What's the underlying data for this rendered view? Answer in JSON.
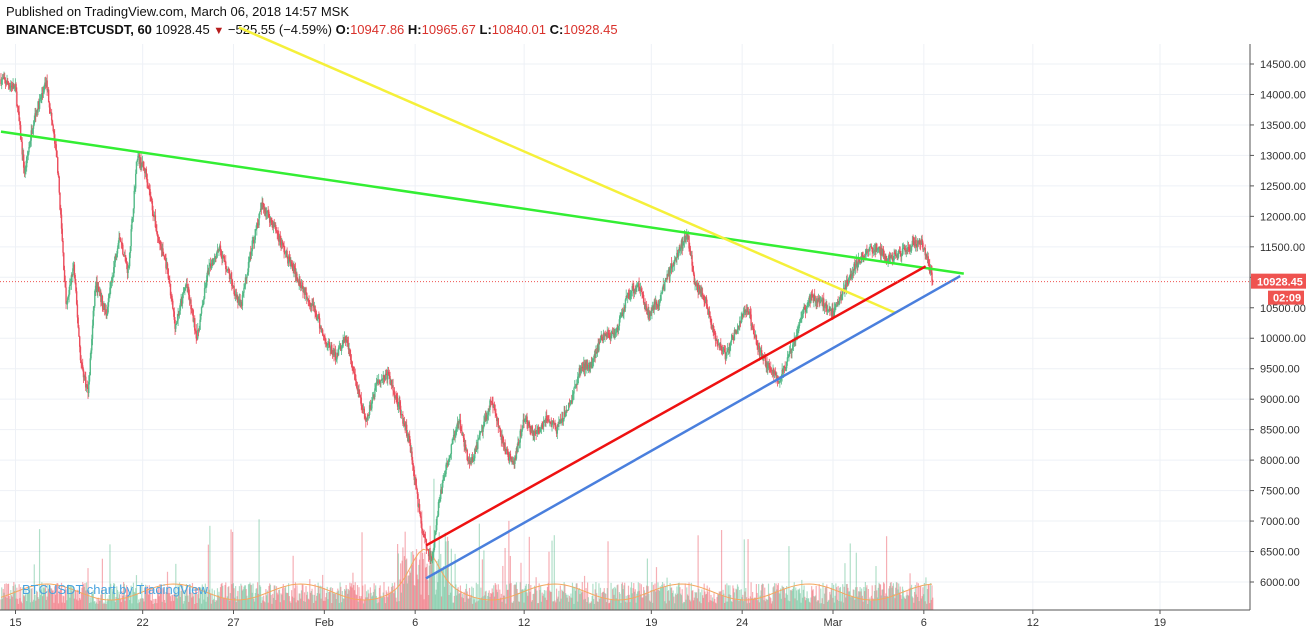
{
  "header": {
    "published": "Published on TradingView.com, March 06, 2018 14:57 MSK",
    "symbol": "BINANCE:BTCUSDT, 60",
    "last": "10928.45",
    "change": "−525.55 (−4.59%)",
    "o_label": "O:",
    "o_value": "10947.86",
    "h_label": "H:",
    "h_value": "10965.67",
    "l_label": "L:",
    "l_value": "10840.01",
    "c_label": "C:",
    "c_value": "10928.45"
  },
  "watermark": "BTCUSDT chart by TradingView",
  "price_label": "10928.45",
  "countdown": "02:09",
  "colors": {
    "up": "#53b987",
    "down": "#eb4d5c",
    "grid": "#eef1f6",
    "green_line": "#33ee33",
    "yellow_line": "#f5f03a",
    "red_line": "#ee1111",
    "blue_line": "#4a7fdd",
    "price_tag": "#ef5350"
  },
  "chart_data": {
    "type": "candlestick",
    "y_ticks": [
      "14500.00",
      "14000.00",
      "13500.00",
      "13000.00",
      "12500.00",
      "12000.00",
      "11500.00",
      "11000.00",
      "10500.00",
      "10000.00",
      "9500.00",
      "9000.00",
      "8500.00",
      "8000.00",
      "7500.00",
      "7000.00",
      "6500.00",
      "6000.00"
    ],
    "y_tick_values": [
      14500,
      14000,
      13500,
      13000,
      12500,
      12000,
      11500,
      11000,
      10500,
      10000,
      9500,
      9000,
      8500,
      8000,
      7500,
      7000,
      6500,
      6000
    ],
    "ylim": [
      5570,
      14850
    ],
    "x_ticks": [
      {
        "label": "15",
        "day": 0
      },
      {
        "label": "22",
        "day": 7
      },
      {
        "label": "27",
        "day": 12
      },
      {
        "label": "Feb",
        "day": 17
      },
      {
        "label": "6",
        "day": 22
      },
      {
        "label": "12",
        "day": 28
      },
      {
        "label": "19",
        "day": 35
      },
      {
        "label": "24",
        "day": 40
      },
      {
        "label": "Mar",
        "day": 45
      },
      {
        "label": "6",
        "day": 50
      },
      {
        "label": "12",
        "day": 56
      },
      {
        "label": "19",
        "day": 63
      }
    ],
    "xlim": [
      -0.8,
      66
    ],
    "last_day": 50.5,
    "price_path": [
      [
        -0.8,
        14250
      ],
      [
        0,
        14100
      ],
      [
        0.5,
        12700
      ],
      [
        1,
        13600
      ],
      [
        1.7,
        14200
      ],
      [
        2.3,
        12900
      ],
      [
        2.8,
        10500
      ],
      [
        3.2,
        11200
      ],
      [
        3.6,
        9600
      ],
      [
        4.0,
        9100
      ],
      [
        4.4,
        10900
      ],
      [
        5,
        10400
      ],
      [
        5.7,
        11700
      ],
      [
        6.2,
        11100
      ],
      [
        6.7,
        13000
      ],
      [
        7.2,
        12700
      ],
      [
        7.8,
        11700
      ],
      [
        8.3,
        11200
      ],
      [
        8.8,
        10200
      ],
      [
        9.4,
        10900
      ],
      [
        10,
        10000
      ],
      [
        10.6,
        11100
      ],
      [
        11.2,
        11500
      ],
      [
        11.8,
        11000
      ],
      [
        12.4,
        10500
      ],
      [
        13,
        11500
      ],
      [
        13.6,
        12200
      ],
      [
        14.3,
        11800
      ],
      [
        15,
        11300
      ],
      [
        15.7,
        10900
      ],
      [
        16.4,
        10500
      ],
      [
        17,
        10000
      ],
      [
        17.6,
        9700
      ],
      [
        18.2,
        10000
      ],
      [
        18.7,
        9300
      ],
      [
        19.3,
        8600
      ],
      [
        19.9,
        9300
      ],
      [
        20.5,
        9400
      ],
      [
        21.1,
        8900
      ],
      [
        21.7,
        8300
      ],
      [
        22.1,
        7400
      ],
      [
        22.5,
        6700
      ],
      [
        22.9,
        6300
      ],
      [
        23.3,
        7300
      ],
      [
        23.8,
        8000
      ],
      [
        24.4,
        8700
      ],
      [
        25,
        7900
      ],
      [
        25.6,
        8400
      ],
      [
        26.2,
        9000
      ],
      [
        26.8,
        8300
      ],
      [
        27.4,
        7900
      ],
      [
        28,
        8700
      ],
      [
        28.6,
        8400
      ],
      [
        29.2,
        8700
      ],
      [
        29.8,
        8500
      ],
      [
        30.5,
        8900
      ],
      [
        31.1,
        9500
      ],
      [
        31.7,
        9600
      ],
      [
        32.4,
        10100
      ],
      [
        33,
        10000
      ],
      [
        33.7,
        10700
      ],
      [
        34.3,
        10900
      ],
      [
        34.8,
        10400
      ],
      [
        35.4,
        10600
      ],
      [
        36,
        11100
      ],
      [
        36.6,
        11500
      ],
      [
        37,
        11700
      ],
      [
        37.4,
        10900
      ],
      [
        38,
        10600
      ],
      [
        38.5,
        10000
      ],
      [
        39.1,
        9700
      ],
      [
        39.6,
        10100
      ],
      [
        40.3,
        10500
      ],
      [
        40.9,
        9800
      ],
      [
        41.5,
        9500
      ],
      [
        42,
        9300
      ],
      [
        42.6,
        9700
      ],
      [
        43.2,
        10300
      ],
      [
        43.8,
        10700
      ],
      [
        44.4,
        10600
      ],
      [
        45,
        10400
      ],
      [
        45.6,
        10800
      ],
      [
        46.2,
        11200
      ],
      [
        46.8,
        11400
      ],
      [
        47.4,
        11500
      ],
      [
        48.0,
        11300
      ],
      [
        48.6,
        11400
      ],
      [
        49.2,
        11500
      ],
      [
        49.8,
        11600
      ],
      [
        50.2,
        11300
      ],
      [
        50.5,
        10928
      ]
    ],
    "series": [
      {
        "name": "",
        "color_key": "green_line",
        "points": [
          [
            -0.8,
            13390
          ],
          [
            52.2,
            11060
          ]
        ]
      },
      {
        "name": "",
        "color_key": "yellow_line",
        "points": [
          [
            12.3,
            15100
          ],
          [
            48.4,
            10420
          ]
        ]
      },
      {
        "name": "",
        "color_key": "red_line",
        "points": [
          [
            22.6,
            6600
          ],
          [
            50.1,
            11180
          ]
        ]
      },
      {
        "name": "",
        "color_key": "blue_line",
        "points": [
          [
            22.6,
            6060
          ],
          [
            52.0,
            11020
          ]
        ]
      }
    ]
  }
}
